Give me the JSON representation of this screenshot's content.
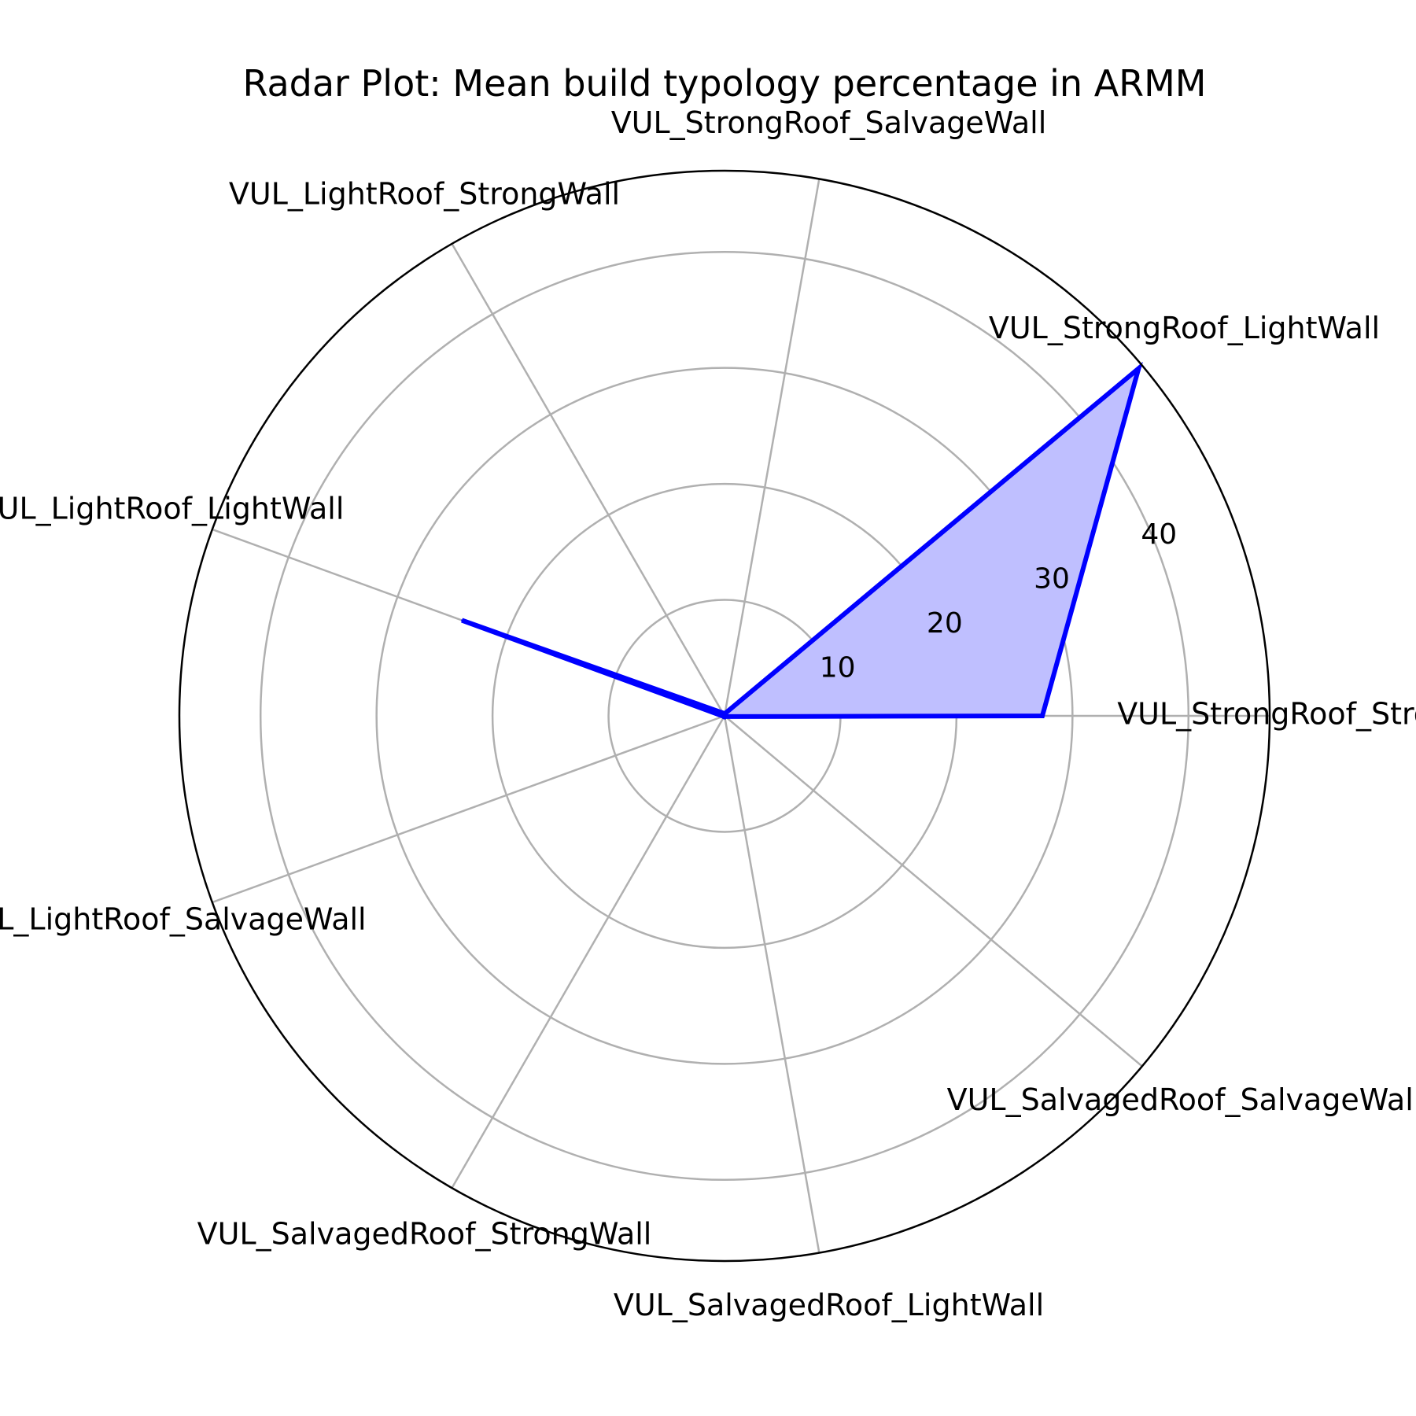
{
  "chart_data": {
    "type": "radar",
    "title": "Radar Plot: Mean build typology percentage in ARMM",
    "categories": [
      "VUL_StrongRoof_StrongWall",
      "VUL_StrongRoof_LightWall",
      "VUL_StrongRoof_SalvageWall",
      "VUL_LightRoof_StrongWall",
      "VUL_LightRoof_LightWall",
      "VUL_LightRoof_SalvageWall",
      "VUL_SalvagedRoof_StrongWall",
      "VUL_SalvagedRoof_LightWall",
      "VUL_SalvagedRoof_SalvageWall"
    ],
    "series": [
      {
        "values": [
          27.4,
          46.6,
          0.2,
          0.3,
          24.1,
          0.1,
          0.1,
          0.1,
          0.1
        ]
      }
    ],
    "rlim": [
      0,
      47
    ],
    "rticks": [
      10,
      20,
      30,
      40
    ],
    "rtick_labels": [
      "10",
      "20",
      "30",
      "40"
    ],
    "grid": true,
    "colors": {
      "line": "#0000ff",
      "fill": "#bfbfff",
      "grid": "#b0b0b0",
      "frame": "#000000"
    }
  }
}
